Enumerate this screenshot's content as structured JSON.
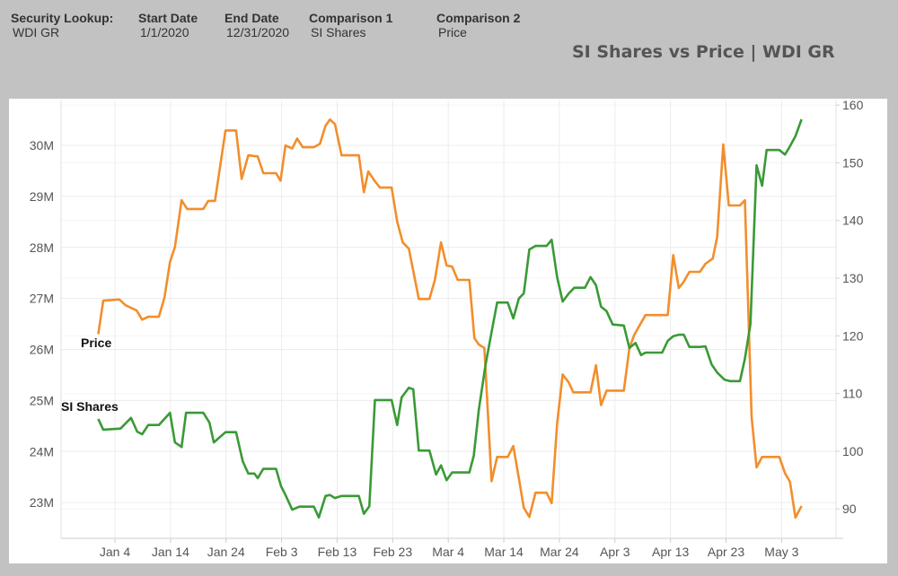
{
  "header": {
    "fields": [
      {
        "label": "Security Lookup:",
        "value": "WDI GR"
      },
      {
        "label": "Start Date",
        "value": "1/1/2020"
      },
      {
        "label": "End Date",
        "value": "12/31/2020"
      },
      {
        "label": "Comparison 1",
        "value": "SI Shares"
      },
      {
        "label": "Comparison 2",
        "value": "Price"
      }
    ]
  },
  "chart_data": {
    "type": "line",
    "title": "SI Shares vs Price | WDI GR",
    "x_unit": "days since 2020-01-01",
    "x_ticks": [
      {
        "day": 3,
        "label": "Jan 4"
      },
      {
        "day": 13,
        "label": "Jan 14"
      },
      {
        "day": 23,
        "label": "Jan 24"
      },
      {
        "day": 33,
        "label": "Feb 3"
      },
      {
        "day": 43,
        "label": "Feb 13"
      },
      {
        "day": 53,
        "label": "Feb 23"
      },
      {
        "day": 63,
        "label": "Mar 4"
      },
      {
        "day": 73,
        "label": "Mar 14"
      },
      {
        "day": 83,
        "label": "Mar 24"
      },
      {
        "day": 93,
        "label": "Apr 3"
      },
      {
        "day": 103,
        "label": "Apr 13"
      },
      {
        "day": 113,
        "label": "Apr 23"
      },
      {
        "day": 123,
        "label": "May 3"
      }
    ],
    "xlim": [
      -6.7,
      132.8
    ],
    "left_axis": {
      "name": "SI Shares",
      "ylim": [
        22.3,
        30.88
      ],
      "ticks": [
        {
          "v": 23,
          "label": "23M"
        },
        {
          "v": 24,
          "label": "24M"
        },
        {
          "v": 25,
          "label": "25M"
        },
        {
          "v": 26,
          "label": "26M"
        },
        {
          "v": 27,
          "label": "27M"
        },
        {
          "v": 28,
          "label": "28M"
        },
        {
          "v": 29,
          "label": "29M"
        },
        {
          "v": 30,
          "label": "30M"
        }
      ]
    },
    "right_axis": {
      "name": "Price",
      "ylim": [
        84.9,
        160.8
      ],
      "ticks": [
        {
          "v": 90,
          "label": "90"
        },
        {
          "v": 100,
          "label": "100"
        },
        {
          "v": 110,
          "label": "110"
        },
        {
          "v": 120,
          "label": "120"
        },
        {
          "v": 130,
          "label": "130"
        },
        {
          "v": 140,
          "label": "140"
        },
        {
          "v": 150,
          "label": "150"
        },
        {
          "v": 160,
          "label": "160"
        }
      ]
    },
    "series": [
      {
        "name": "Price",
        "label": "Price",
        "axis": "right",
        "color": "#f28e2b",
        "points": [
          [
            0,
            120.3
          ],
          [
            0.9,
            126.1
          ],
          [
            3.8,
            126.3
          ],
          [
            4.9,
            125.3
          ],
          [
            6.9,
            124.4
          ],
          [
            7.9,
            122.8
          ],
          [
            9,
            123.3
          ],
          [
            10.9,
            123.3
          ],
          [
            11.9,
            126.6
          ],
          [
            12.9,
            132.8
          ],
          [
            13.8,
            135.4
          ],
          [
            15,
            143.5
          ],
          [
            16,
            142
          ],
          [
            18.9,
            142
          ],
          [
            19.8,
            143.4
          ],
          [
            21,
            143.4
          ],
          [
            22.9,
            155.6
          ],
          [
            24.8,
            155.6
          ],
          [
            25.8,
            147.2
          ],
          [
            27,
            151.3
          ],
          [
            28.7,
            151.1
          ],
          [
            29.7,
            148.2
          ],
          [
            32,
            148.2
          ],
          [
            32.8,
            146.9
          ],
          [
            33.7,
            153
          ],
          [
            34.9,
            152.5
          ],
          [
            35.8,
            154.2
          ],
          [
            36.8,
            152.7
          ],
          [
            38.8,
            152.7
          ],
          [
            39.9,
            153.3
          ],
          [
            40.9,
            156.4
          ],
          [
            41.7,
            157.5
          ],
          [
            42.6,
            156.7
          ],
          [
            43.8,
            151.3
          ],
          [
            46.9,
            151.3
          ],
          [
            47.8,
            144.9
          ],
          [
            48.6,
            148.5
          ],
          [
            49.8,
            146.8
          ],
          [
            50.7,
            145.7
          ],
          [
            52.8,
            145.7
          ],
          [
            53.8,
            139.8
          ],
          [
            54.8,
            136.2
          ],
          [
            55.9,
            135.1
          ],
          [
            57.7,
            126.4
          ],
          [
            59.6,
            126.4
          ],
          [
            60.6,
            129.7
          ],
          [
            61.7,
            136.2
          ],
          [
            62.7,
            132.2
          ],
          [
            63.7,
            132
          ],
          [
            64.7,
            129.7
          ],
          [
            66.8,
            129.7
          ],
          [
            67.7,
            119.6
          ],
          [
            68.5,
            118.5
          ],
          [
            69.5,
            117.9
          ],
          [
            70.8,
            94.8
          ],
          [
            71.8,
            99
          ],
          [
            73.7,
            99
          ],
          [
            74.7,
            100.9
          ],
          [
            75.7,
            95.3
          ],
          [
            76.6,
            90.2
          ],
          [
            77.6,
            88.6
          ],
          [
            78.7,
            92.8
          ],
          [
            80.7,
            92.8
          ],
          [
            81.6,
            91
          ],
          [
            82.6,
            104.8
          ],
          [
            83.6,
            113.3
          ],
          [
            84.7,
            111.9
          ],
          [
            85.5,
            110.2
          ],
          [
            88.6,
            110.2
          ],
          [
            89.6,
            114.9
          ],
          [
            90.5,
            108
          ],
          [
            91.5,
            110.5
          ],
          [
            94.6,
            110.5
          ],
          [
            95.6,
            117.9
          ],
          [
            96.5,
            120.2
          ],
          [
            98.5,
            123.6
          ],
          [
            102.5,
            123.6
          ],
          [
            103.5,
            134
          ],
          [
            104.5,
            128.3
          ],
          [
            105.4,
            129.4
          ],
          [
            106.4,
            131.1
          ],
          [
            108.3,
            131.1
          ],
          [
            109.3,
            132.5
          ],
          [
            110.6,
            133.4
          ],
          [
            111.4,
            137.1
          ],
          [
            112.5,
            153.2
          ],
          [
            113.5,
            142.6
          ],
          [
            115.5,
            142.6
          ],
          [
            116.4,
            143.5
          ],
          [
            117.6,
            105.9
          ],
          [
            118.5,
            97.2
          ],
          [
            119.5,
            99
          ],
          [
            122.6,
            99
          ],
          [
            123.6,
            96.2
          ],
          [
            124.5,
            94.7
          ],
          [
            125.5,
            88.5
          ],
          [
            126.6,
            90.5
          ]
        ]
      },
      {
        "name": "SI Shares",
        "label": "SI Shares",
        "axis": "left",
        "color": "#3a9a36",
        "points": [
          [
            0,
            24.64
          ],
          [
            0.9,
            24.43
          ],
          [
            4,
            24.45
          ],
          [
            5.9,
            24.66
          ],
          [
            7,
            24.39
          ],
          [
            7.9,
            24.34
          ],
          [
            9,
            24.52
          ],
          [
            10.9,
            24.52
          ],
          [
            12.9,
            24.76
          ],
          [
            13.8,
            24.18
          ],
          [
            15,
            24.09
          ],
          [
            15.8,
            24.76
          ],
          [
            18.9,
            24.76
          ],
          [
            20,
            24.57
          ],
          [
            20.8,
            24.18
          ],
          [
            22.9,
            24.38
          ],
          [
            24.8,
            24.38
          ],
          [
            26,
            23.81
          ],
          [
            27,
            23.57
          ],
          [
            28.1,
            23.57
          ],
          [
            28.7,
            23.48
          ],
          [
            29.7,
            23.66
          ],
          [
            32,
            23.66
          ],
          [
            32.9,
            23.32
          ],
          [
            33.7,
            23.15
          ],
          [
            34.9,
            22.86
          ],
          [
            36.2,
            22.92
          ],
          [
            38.8,
            22.92
          ],
          [
            39.7,
            22.71
          ],
          [
            40.9,
            23.13
          ],
          [
            41.7,
            23.15
          ],
          [
            42.6,
            23.09
          ],
          [
            43.8,
            23.13
          ],
          [
            46.9,
            23.13
          ],
          [
            47.8,
            22.78
          ],
          [
            48.8,
            22.93
          ],
          [
            49.8,
            25.01
          ],
          [
            52.8,
            25.01
          ],
          [
            53.8,
            24.52
          ],
          [
            54.6,
            25.06
          ],
          [
            55.9,
            25.25
          ],
          [
            56.7,
            25.22
          ],
          [
            57.7,
            24.02
          ],
          [
            59.6,
            24.02
          ],
          [
            60.8,
            23.55
          ],
          [
            61.7,
            23.73
          ],
          [
            62.7,
            23.44
          ],
          [
            63.7,
            23.59
          ],
          [
            66.8,
            23.59
          ],
          [
            67.6,
            23.92
          ],
          [
            68.5,
            24.82
          ],
          [
            69.7,
            25.69
          ],
          [
            70.8,
            26.34
          ],
          [
            71.8,
            26.92
          ],
          [
            73.7,
            26.92
          ],
          [
            74.7,
            26.61
          ],
          [
            75.7,
            27.0
          ],
          [
            76.6,
            27.1
          ],
          [
            77.6,
            27.96
          ],
          [
            78.7,
            28.03
          ],
          [
            80.7,
            28.03
          ],
          [
            81.6,
            28.15
          ],
          [
            82.6,
            27.42
          ],
          [
            83.6,
            26.94
          ],
          [
            84.7,
            27.1
          ],
          [
            85.7,
            27.21
          ],
          [
            87.6,
            27.21
          ],
          [
            88.6,
            27.42
          ],
          [
            89.6,
            27.26
          ],
          [
            90.5,
            26.84
          ],
          [
            91.5,
            26.75
          ],
          [
            92.6,
            26.49
          ],
          [
            94.6,
            26.47
          ],
          [
            95.6,
            26.03
          ],
          [
            96.7,
            26.13
          ],
          [
            97.7,
            25.89
          ],
          [
            98.5,
            25.94
          ],
          [
            101.5,
            25.94
          ],
          [
            102.5,
            26.17
          ],
          [
            103.5,
            26.26
          ],
          [
            104.5,
            26.29
          ],
          [
            105.4,
            26.29
          ],
          [
            106.4,
            26.05
          ],
          [
            108.3,
            26.05
          ],
          [
            109.3,
            26.06
          ],
          [
            110.4,
            25.71
          ],
          [
            111.4,
            25.55
          ],
          [
            112.7,
            25.41
          ],
          [
            113.7,
            25.38
          ],
          [
            115.5,
            25.38
          ],
          [
            116.4,
            25.82
          ],
          [
            117.4,
            26.5
          ],
          [
            118.5,
            29.61
          ],
          [
            119.5,
            29.21
          ],
          [
            120.3,
            29.91
          ],
          [
            122.6,
            29.91
          ],
          [
            123.6,
            29.82
          ],
          [
            124.4,
            29.96
          ],
          [
            125.5,
            30.18
          ],
          [
            126.6,
            30.51
          ]
        ]
      }
    ],
    "grid": true,
    "legend": "inline labels at line starts"
  }
}
